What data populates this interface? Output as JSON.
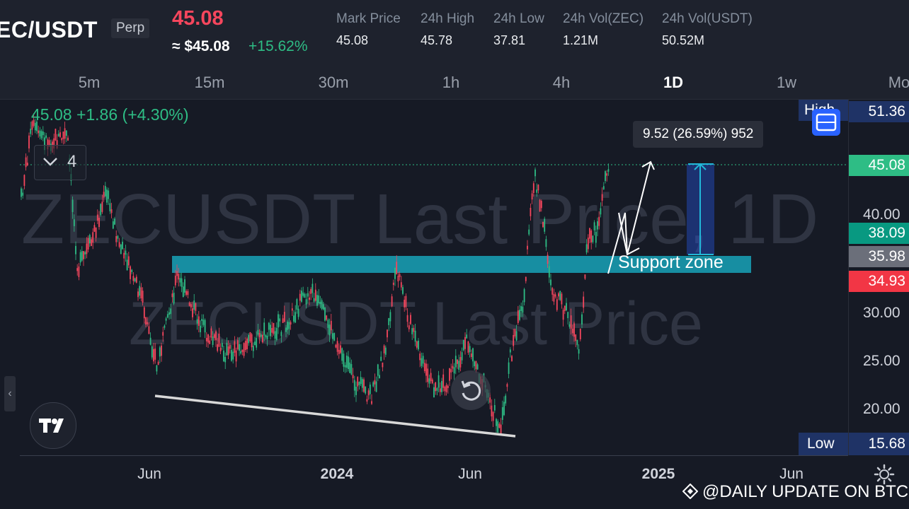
{
  "header": {
    "symbol": "EC/USDT",
    "contract_type": "Perp",
    "last_price": "45.08",
    "usd_price": "≈ $45.08",
    "change_pct": "+15.62%",
    "stats": [
      {
        "label": "Mark Price",
        "value": "45.08"
      },
      {
        "label": "24h High",
        "value": "45.78"
      },
      {
        "label": "24h Low",
        "value": "37.81"
      },
      {
        "label": "24h Vol(ZEC)",
        "value": "1.21M"
      },
      {
        "label": "24h Vol(USDT)",
        "value": "50.52M"
      }
    ]
  },
  "timeframes": [
    "5m",
    "15m",
    "30m",
    "1h",
    "4h",
    "1D",
    "1w",
    "Mo"
  ],
  "active_timeframe": "1D",
  "chart": {
    "ohlc_readout": "45.08  +1.86 (+4.30%)",
    "indicator_count": "4",
    "watermark_primary": "ZECUSDT Last Price, 1D",
    "watermark_secondary": "ZECUSDT Last Price",
    "measure_label": "9.52 (26.59%) 952",
    "support_label": "Support zone",
    "price_ticks": [
      "40.00",
      "30.00",
      "25.00",
      "20.00"
    ],
    "price_tags": [
      {
        "value": "51.36",
        "color": "#1f3366"
      },
      {
        "value": "45.08",
        "color": "#2ebd85"
      },
      {
        "value": "38.09",
        "color": "#089981"
      },
      {
        "value": "35.98",
        "color": "#6b6f7a"
      },
      {
        "value": "34.93",
        "color": "#f23645"
      }
    ],
    "high_label": "High",
    "low_label": "Low",
    "low_value": "15.68",
    "time_ticks": [
      {
        "label": "Jun",
        "bold": false
      },
      {
        "label": "2024",
        "bold": true
      },
      {
        "label": "Jun",
        "bold": false
      },
      {
        "label": "2025",
        "bold": true
      },
      {
        "label": "Jun",
        "bold": false
      }
    ]
  },
  "credit": "@DAILY UPDATE ON BTC",
  "colors": {
    "up": "#2ebd85",
    "down": "#f6465d",
    "support_zone": "#17a3b8",
    "accent": "#2962ff"
  },
  "icons": [
    "chevron-down-icon",
    "reset-icon",
    "tradingview-logo-icon",
    "screenshot-icon",
    "settings-icon",
    "chevron-left-icon",
    "binance-logo-icon"
  ]
}
